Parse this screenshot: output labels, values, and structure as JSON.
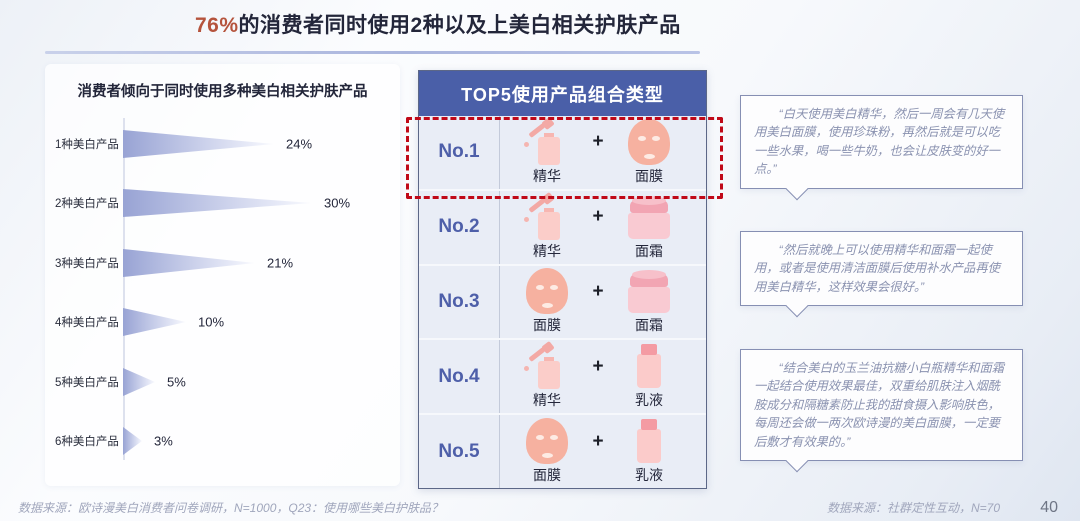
{
  "slide": {
    "title": {
      "highlight": "76%",
      "rest": "的消费者同时使用2种以及上美白相关护肤产品"
    },
    "page_number": "40"
  },
  "chart": {
    "title": "消费者倾向于同时使用多种美白相关护肤产品"
  },
  "chart_data": {
    "type": "bar",
    "orientation": "horizontal-funnel",
    "title": "消费者倾向于同时使用多种美白相关护肤产品",
    "categories": [
      "1种美白产品",
      "2种美白产品",
      "3种美白产品",
      "4种美白产品",
      "5种美白产品",
      "6种美白产品"
    ],
    "values": [
      24,
      30,
      21,
      10,
      5,
      3
    ],
    "value_suffix": "%",
    "xlim": [
      0,
      32
    ],
    "grid": false,
    "legend": false
  },
  "top5": {
    "header": "TOP5使用产品组合类型",
    "plus": "+",
    "rows": [
      {
        "rank": "No.1",
        "icon1": "serum",
        "item1": "精华",
        "icon2": "mask",
        "item2": "面膜",
        "highlighted": true
      },
      {
        "rank": "No.2",
        "icon1": "serum",
        "item1": "精华",
        "icon2": "cream",
        "item2": "面霜",
        "highlighted": false
      },
      {
        "rank": "No.3",
        "icon1": "mask",
        "item1": "面膜",
        "icon2": "cream",
        "item2": "面霜",
        "highlighted": false
      },
      {
        "rank": "No.4",
        "icon1": "serum",
        "item1": "精华",
        "icon2": "lotion",
        "item2": "乳液",
        "highlighted": false
      },
      {
        "rank": "No.5",
        "icon1": "mask",
        "item1": "面膜",
        "icon2": "lotion",
        "item2": "乳液",
        "highlighted": false
      }
    ]
  },
  "quotes": [
    {
      "text": "“白天使用美白精华，然后一周会有几天使用美白面膜，使用珍珠粉，再然后就是可以吃一些水果，喝一些牛奶，也会让皮肤变的好一点。”"
    },
    {
      "text": "“然后就晚上可以使用精华和面霜一起使用，或者是使用清洁面膜后使用补水产品再使用美白精华，这样效果会很好。”"
    },
    {
      "text": "“结合美白的玉兰油抗糖小白瓶精华和面霜一起结合使用效果最佳，双重给肌肤注入烟酰胺成分和隔糖素防止我的甜食摄入影响肤色，每周还会做一两次欧诗漫的美白面膜，一定要后敷才有效果的。”"
    }
  ],
  "footer": {
    "left": "数据来源：欧诗漫美白消费者问卷调研，N=1000，Q23：使用哪些美白护肤品？",
    "right": "数据来源：社群定性互动，N=70"
  },
  "colors": {
    "accent_red": "#b5533c",
    "dashed_highlight": "#c00918",
    "header_blue": "#4a5fa8",
    "funnel_dark": "#98a3d4",
    "funnel_light": "#e6e9f7"
  }
}
